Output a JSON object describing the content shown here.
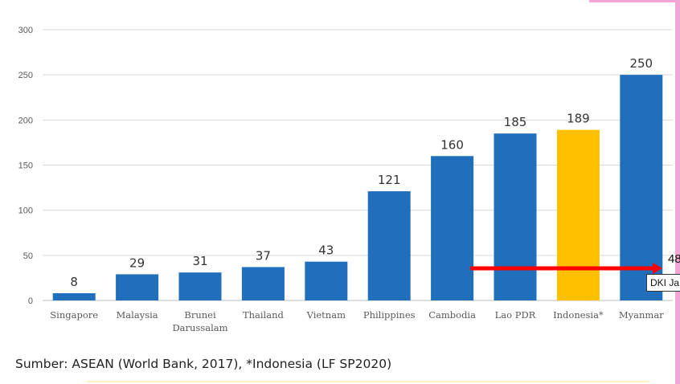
{
  "chart_data": {
    "type": "bar",
    "categories": [
      "Singapore",
      "Malaysia",
      "Brunei\nDarussalam",
      "Thailand",
      "Vietnam",
      "Philippines",
      "Cambodia",
      "Lao PDR",
      "Indonesia*",
      "Myanmar"
    ],
    "values": [
      8,
      29,
      31,
      37,
      43,
      121,
      160,
      185,
      189,
      250
    ],
    "ylim": [
      0,
      300
    ],
    "yticks": [
      0,
      50,
      100,
      150,
      200,
      250,
      300
    ],
    "grid": true,
    "colors": {
      "default": "#1f6fbd",
      "highlight": "#ffc000",
      "highlight_index": 8,
      "gridline": "#d9d9d9",
      "axis_text": "#595959",
      "annotation_line": "#ff0000"
    }
  },
  "source_note": "Sumber: ASEAN (World Bank, 2017), *Indonesia (LF SP2020)",
  "annotation": {
    "value": "48",
    "label": "DKI Ja"
  }
}
